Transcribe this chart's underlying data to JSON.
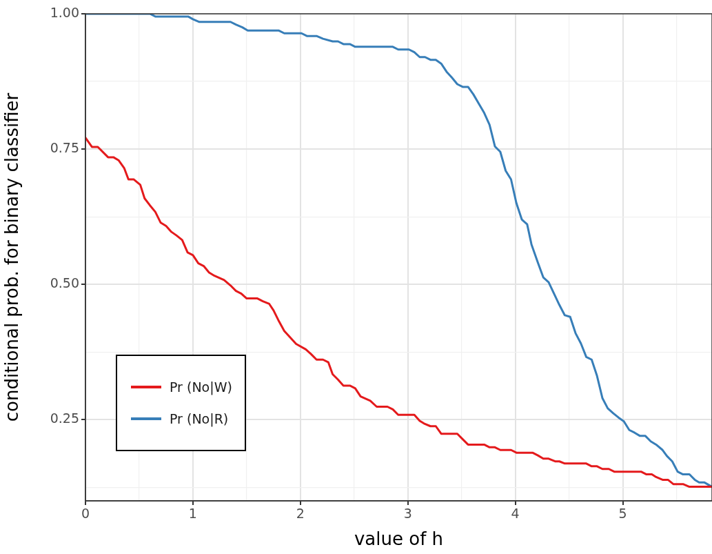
{
  "chart_data": {
    "type": "line",
    "xlabel": "value of h",
    "ylabel": "conditional prob. for binary classifier",
    "xlim": [
      0,
      5.83
    ],
    "ylim": [
      0.1,
      1.0
    ],
    "xticks": [
      0,
      {
        "value": 0.5,
        "label": null
      },
      1,
      {
        "value": 1.5,
        "label": null
      },
      2,
      {
        "value": 2.5,
        "label": null
      },
      3,
      {
        "value": 3.5,
        "label": null
      },
      4,
      {
        "value": 4.5,
        "label": null
      },
      5,
      {
        "value": 5.5,
        "label": null
      }
    ],
    "yticks": [
      {
        "value": 0.125,
        "label": null
      },
      {
        "value": 0.25,
        "label": "0.25"
      },
      {
        "value": 0.375,
        "label": null
      },
      {
        "value": 0.5,
        "label": "0.50"
      },
      {
        "value": 0.625,
        "label": null
      },
      {
        "value": 0.75,
        "label": "0.75"
      },
      {
        "value": 0.875,
        "label": null
      },
      {
        "value": 1.0,
        "label": "1.00"
      }
    ],
    "grid": true,
    "legend": "bottom left",
    "marker": "none",
    "line_style": "solid",
    "series": [
      {
        "name": "Pr (No|W)",
        "color": "#e41a1c",
        "x": [
          0,
          0.06,
          0.115,
          0.21,
          0.26,
          0.31,
          0.36,
          0.4,
          0.45,
          0.51,
          0.55,
          0.6,
          0.65,
          0.7,
          0.75,
          0.8,
          0.85,
          0.9,
          0.95,
          1.0,
          1.05,
          1.1,
          1.15,
          1.2,
          1.29,
          1.35,
          1.4,
          1.45,
          1.5,
          1.6,
          1.65,
          1.71,
          1.75,
          1.8,
          1.85,
          1.9,
          1.96,
          2.05,
          2.1,
          2.15,
          2.21,
          2.26,
          2.3,
          2.35,
          2.4,
          2.46,
          2.51,
          2.56,
          2.65,
          2.71,
          2.81,
          2.86,
          2.91,
          3.06,
          3.11,
          3.15,
          3.21,
          3.26,
          3.31,
          3.46,
          3.51,
          3.56,
          3.71,
          3.76,
          3.81,
          3.86,
          3.96,
          4.01,
          4.16,
          4.21,
          4.26,
          4.31,
          4.37,
          4.41,
          4.46,
          4.66,
          4.71,
          4.76,
          4.81,
          4.87,
          4.92,
          5.17,
          5.22,
          5.27,
          5.31,
          5.37,
          5.42,
          5.47,
          5.56,
          5.62,
          5.83
        ],
        "values": [
          0.771,
          0.754,
          0.754,
          0.735,
          0.735,
          0.729,
          0.715,
          0.694,
          0.694,
          0.684,
          0.659,
          0.646,
          0.634,
          0.614,
          0.608,
          0.597,
          0.59,
          0.582,
          0.559,
          0.554,
          0.539,
          0.534,
          0.522,
          0.516,
          0.508,
          0.498,
          0.488,
          0.483,
          0.474,
          0.474,
          0.469,
          0.464,
          0.452,
          0.432,
          0.414,
          0.403,
          0.39,
          0.38,
          0.371,
          0.361,
          0.361,
          0.356,
          0.334,
          0.324,
          0.313,
          0.313,
          0.308,
          0.293,
          0.285,
          0.274,
          0.274,
          0.269,
          0.259,
          0.259,
          0.248,
          0.243,
          0.238,
          0.238,
          0.224,
          0.224,
          0.214,
          0.204,
          0.204,
          0.199,
          0.199,
          0.194,
          0.194,
          0.189,
          0.189,
          0.184,
          0.178,
          0.178,
          0.173,
          0.173,
          0.169,
          0.169,
          0.164,
          0.164,
          0.159,
          0.159,
          0.154,
          0.154,
          0.149,
          0.149,
          0.144,
          0.139,
          0.139,
          0.131,
          0.131,
          0.126,
          0.126
        ]
      },
      {
        "name": "Pr (No|R)",
        "color": "#377eb8",
        "x": [
          0,
          0.6,
          0.65,
          0.955,
          1.0,
          1.06,
          1.35,
          1.4,
          1.46,
          1.51,
          1.8,
          1.85,
          2.01,
          2.06,
          2.15,
          2.21,
          2.3,
          2.35,
          2.4,
          2.46,
          2.51,
          2.86,
          2.91,
          3.01,
          3.06,
          3.11,
          3.16,
          3.21,
          3.26,
          3.31,
          3.36,
          3.41,
          3.46,
          3.51,
          3.56,
          3.61,
          3.66,
          3.71,
          3.76,
          3.81,
          3.86,
          3.91,
          3.96,
          4.01,
          4.06,
          4.11,
          4.15,
          4.21,
          4.26,
          4.31,
          4.36,
          4.41,
          4.46,
          4.51,
          4.56,
          4.61,
          4.66,
          4.71,
          4.76,
          4.81,
          4.86,
          4.91,
          4.96,
          5.01,
          5.06,
          5.11,
          5.16,
          5.21,
          5.26,
          5.31,
          5.37,
          5.41,
          5.46,
          5.51,
          5.56,
          5.62,
          5.67,
          5.71,
          5.76,
          5.83
        ],
        "values": [
          1.0,
          1.0,
          0.995,
          0.995,
          0.99,
          0.985,
          0.985,
          0.98,
          0.975,
          0.969,
          0.969,
          0.964,
          0.964,
          0.959,
          0.959,
          0.954,
          0.949,
          0.949,
          0.944,
          0.944,
          0.939,
          0.939,
          0.934,
          0.934,
          0.929,
          0.92,
          0.92,
          0.915,
          0.915,
          0.908,
          0.893,
          0.882,
          0.87,
          0.865,
          0.865,
          0.851,
          0.834,
          0.817,
          0.795,
          0.755,
          0.745,
          0.71,
          0.694,
          0.65,
          0.62,
          0.611,
          0.574,
          0.54,
          0.513,
          0.504,
          0.483,
          0.462,
          0.443,
          0.44,
          0.41,
          0.391,
          0.366,
          0.361,
          0.331,
          0.29,
          0.271,
          0.262,
          0.254,
          0.247,
          0.231,
          0.226,
          0.22,
          0.22,
          0.21,
          0.204,
          0.194,
          0.183,
          0.173,
          0.154,
          0.149,
          0.149,
          0.139,
          0.134,
          0.134,
          0.126
        ]
      }
    ]
  }
}
